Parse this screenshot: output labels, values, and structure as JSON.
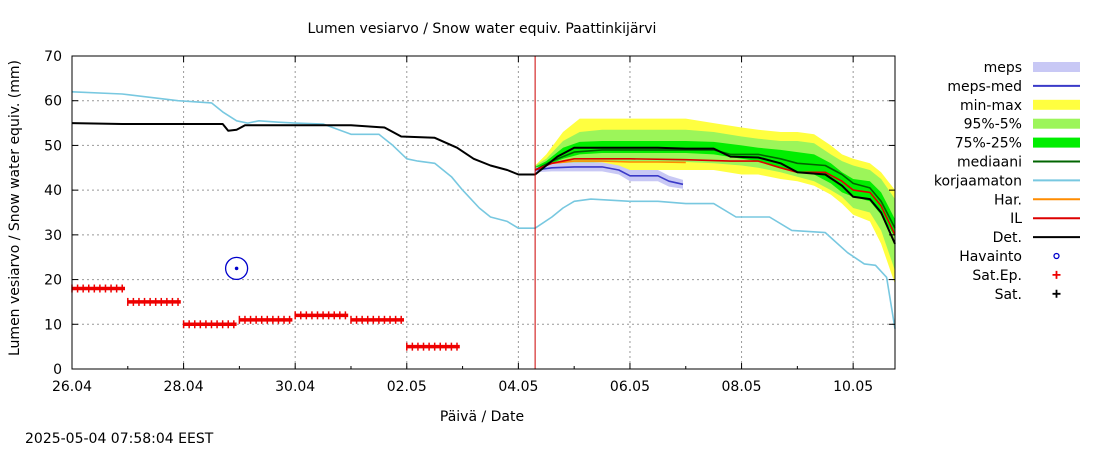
{
  "timestamp": "2025-05-04 07:58:04 EEST",
  "chart_data": {
    "type": "line",
    "title": "Lumen vesiarvo / Snow water equiv.  Paattinkijärvi",
    "xlabel": "Päivä / Date",
    "ylabel": "Lumen vesiarvo / Snow water equiv. (mm)",
    "xlim": [
      0,
      14.75
    ],
    "ylim": [
      0,
      70
    ],
    "grid": true,
    "legend_position": "right-outside",
    "x_tick_labels": [
      {
        "x": 0,
        "label": "26.04"
      },
      {
        "x": 2,
        "label": "28.04"
      },
      {
        "x": 4,
        "label": "30.04"
      },
      {
        "x": 6,
        "label": "02.05"
      },
      {
        "x": 8,
        "label": "04.05"
      },
      {
        "x": 10,
        "label": "06.05"
      },
      {
        "x": 12,
        "label": "08.05"
      },
      {
        "x": 14,
        "label": "10.05"
      }
    ],
    "y_ticks": [
      0,
      10,
      20,
      30,
      40,
      50,
      60,
      70
    ],
    "forecast_start_x": 8.3,
    "forecast_line_color": "#cc0000",
    "legend": [
      {
        "key": "meps",
        "label": "meps",
        "kind": "band",
        "color": "#c8c8f5"
      },
      {
        "key": "meps_med",
        "label": "meps-med",
        "kind": "line",
        "color": "#3a3ac8"
      },
      {
        "key": "minmax",
        "label": "min-max",
        "kind": "band",
        "color": "#ffff40"
      },
      {
        "key": "p95_5",
        "label": "95%-5%",
        "kind": "band",
        "color": "#9cf55a"
      },
      {
        "key": "p75_25",
        "label": "75%-25%",
        "kind": "band",
        "color": "#00ee00"
      },
      {
        "key": "mediaani",
        "label": "mediaani",
        "kind": "line",
        "color": "#006400"
      },
      {
        "key": "korjaamaton",
        "label": "korjaamaton",
        "kind": "line",
        "color": "#78c8e0"
      },
      {
        "key": "har",
        "label": "Har.",
        "kind": "line",
        "color": "#ff8c00"
      },
      {
        "key": "il",
        "label": "IL",
        "kind": "line",
        "color": "#dd0000"
      },
      {
        "key": "det",
        "label": "Det.",
        "kind": "line",
        "color": "#000000"
      },
      {
        "key": "havainto",
        "label": "Havainto",
        "kind": "circle",
        "color": "#0000cc"
      },
      {
        "key": "sat_ep",
        "label": "Sat.Ep.",
        "kind": "plus",
        "color": "#ee0000"
      },
      {
        "key": "sat",
        "label": "Sat.",
        "kind": "plus",
        "color": "#000000"
      }
    ],
    "series": {
      "korjaamaton": {
        "x": [
          0,
          0.9,
          1.9,
          2.5,
          2.7,
          2.95,
          3.15,
          3.35,
          3.7,
          4.0,
          4.5,
          5.0,
          5.5,
          5.75,
          6.0,
          6.2,
          6.5,
          6.8,
          7.0,
          7.3,
          7.5,
          7.8,
          8.0,
          8.3,
          8.6,
          8.8,
          9.0,
          9.3,
          10.0,
          10.5,
          11.0,
          11.5,
          11.9,
          12.5,
          12.9,
          13.5,
          13.9,
          14.2,
          14.4,
          14.6,
          14.75
        ],
        "y": [
          62,
          61.5,
          60,
          59.5,
          57.5,
          55.5,
          55,
          55.5,
          55.2,
          55,
          54.8,
          52.5,
          52.5,
          50,
          47,
          46.5,
          46,
          43,
          40,
          36,
          34,
          33,
          31.5,
          31.5,
          34,
          36,
          37.5,
          38,
          37.5,
          37.5,
          37,
          37,
          34,
          34,
          31,
          30.5,
          26,
          23.5,
          23.2,
          20.5,
          9
        ]
      },
      "det": {
        "x": [
          0,
          0.9,
          2.7,
          2.8,
          2.95,
          3.1,
          3.5,
          4.0,
          5.0,
          5.6,
          5.9,
          6.5,
          6.9,
          7.2,
          7.5,
          7.8,
          8.0,
          8.3,
          8.5,
          8.7,
          9.0,
          9.5,
          10.0,
          10.5,
          11.0,
          11.5,
          11.8,
          12.3,
          12.7,
          13.0,
          13.5,
          13.8,
          14.0,
          14.3,
          14.5,
          14.75
        ],
        "y": [
          55,
          54.8,
          54.8,
          53.3,
          53.5,
          54.5,
          54.5,
          54.5,
          54.5,
          54,
          52,
          51.7,
          49.5,
          47,
          45.5,
          44.5,
          43.5,
          43.5,
          45.5,
          47.5,
          49.5,
          49.5,
          49.5,
          49.5,
          49.3,
          49.3,
          47.5,
          47.3,
          46,
          44,
          43.5,
          41,
          38.5,
          38,
          35,
          28
        ]
      },
      "il": {
        "x": [
          8.3,
          8.6,
          9.0,
          9.5,
          10.0,
          11.0,
          11.8,
          12.3,
          12.7,
          13.0,
          13.5,
          13.8,
          14.0,
          14.3,
          14.5,
          14.75
        ],
        "y": [
          44.5,
          46,
          47,
          47,
          47,
          46.8,
          46.5,
          46.5,
          45,
          44,
          44,
          42,
          40,
          39.5,
          36.5,
          30
        ]
      },
      "har": {
        "x": [
          8.3,
          8.6,
          9.0,
          9.5,
          10.0,
          10.5,
          11.0
        ],
        "y": [
          44.5,
          46,
          46.5,
          46.5,
          46.3,
          46.3,
          46.2
        ]
      },
      "mediaani": {
        "x": [
          8.3,
          8.6,
          9.0,
          9.5,
          10.0,
          11.0,
          11.5,
          11.8,
          12.3,
          12.7,
          13.0,
          13.5,
          13.8,
          14.0,
          14.3,
          14.5,
          14.75
        ],
        "y": [
          44.5,
          46.5,
          48.5,
          49,
          49,
          49,
          49,
          48,
          48,
          47,
          46,
          45.5,
          43.5,
          41.5,
          40.5,
          37.5,
          31.5
        ]
      },
      "meps_med": {
        "x": [
          8.3,
          8.6,
          9.0,
          9.5,
          9.8,
          10.0,
          10.5,
          10.7,
          10.95
        ],
        "y": [
          44.5,
          45,
          45.2,
          45.2,
          44.5,
          43.2,
          43.2,
          42,
          41.3
        ]
      },
      "meps": {
        "x": [
          8.3,
          8.6,
          9.0,
          9.5,
          9.8,
          10.0,
          10.5,
          10.7,
          10.95
        ],
        "upper": [
          45,
          46,
          46.2,
          46.2,
          45.5,
          44.5,
          44.5,
          43.2,
          42.3
        ],
        "lower": [
          44,
          44.2,
          44.2,
          44.2,
          43.5,
          42,
          42,
          40.8,
          40.3
        ]
      },
      "minmax": {
        "x": [
          8.3,
          8.5,
          8.8,
          9.1,
          9.5,
          10.0,
          11.0,
          11.5,
          12.0,
          12.3,
          12.7,
          13.0,
          13.3,
          13.6,
          13.8,
          14.0,
          14.3,
          14.5,
          14.75
        ],
        "upper": [
          45.5,
          48,
          53,
          56,
          56,
          56,
          56,
          55,
          54,
          53.5,
          53,
          53,
          52.5,
          50,
          48,
          47,
          46,
          44,
          40
        ],
        "lower": [
          44.5,
          44.5,
          44.5,
          44.5,
          44.5,
          44.5,
          44.5,
          44.5,
          43.5,
          43.5,
          42.5,
          42,
          41,
          39,
          37,
          34.5,
          33,
          28,
          19
        ]
      },
      "p95_5": {
        "x": [
          8.3,
          8.5,
          8.8,
          9.1,
          9.5,
          10.0,
          11.0,
          11.5,
          12.0,
          12.3,
          12.7,
          13.0,
          13.3,
          13.6,
          13.8,
          14.0,
          14.3,
          14.5,
          14.75
        ],
        "upper": [
          45.5,
          47,
          51,
          53,
          53.5,
          53.5,
          53.5,
          53,
          52,
          51.5,
          51,
          51,
          50.5,
          48,
          46.5,
          45.5,
          44.5,
          42.5,
          38
        ],
        "lower": [
          44.5,
          45,
          45.5,
          46,
          46.3,
          46.3,
          46.3,
          46,
          45.5,
          45,
          44,
          43,
          42,
          40,
          38.5,
          36,
          35,
          31,
          22
        ]
      },
      "p75_25": {
        "x": [
          8.3,
          8.5,
          8.8,
          9.1,
          9.5,
          10.0,
          11.0,
          11.5,
          12.0,
          12.3,
          12.7,
          13.0,
          13.3,
          13.6,
          13.8,
          14.0,
          14.3,
          14.5,
          14.75
        ],
        "upper": [
          45.2,
          46.5,
          49.5,
          50.8,
          51,
          51,
          51,
          50.8,
          50,
          49.5,
          49,
          48.5,
          48,
          46,
          44,
          42.5,
          42,
          39.5,
          33.5
        ],
        "lower": [
          44.7,
          45.5,
          47,
          48,
          48.3,
          48.3,
          48.3,
          48,
          47,
          46.5,
          45,
          44,
          43.5,
          41.5,
          39.5,
          38.5,
          37.5,
          34.5,
          29.5
        ]
      },
      "sat_ep": [
        {
          "x0": 0,
          "x1": 0.95,
          "y": 18
        },
        {
          "x0": 1.0,
          "x1": 1.95,
          "y": 15
        },
        {
          "x0": 2.0,
          "x1": 2.95,
          "y": 10
        },
        {
          "x0": 3.0,
          "x1": 3.95,
          "y": 11
        },
        {
          "x0": 4.0,
          "x1": 4.95,
          "y": 12
        },
        {
          "x0": 5.0,
          "x1": 5.95,
          "y": 11
        },
        {
          "x0": 6.0,
          "x1": 6.95,
          "y": 5
        }
      ],
      "havainto": [
        {
          "x": 2.95,
          "y": 22.5
        }
      ]
    }
  }
}
